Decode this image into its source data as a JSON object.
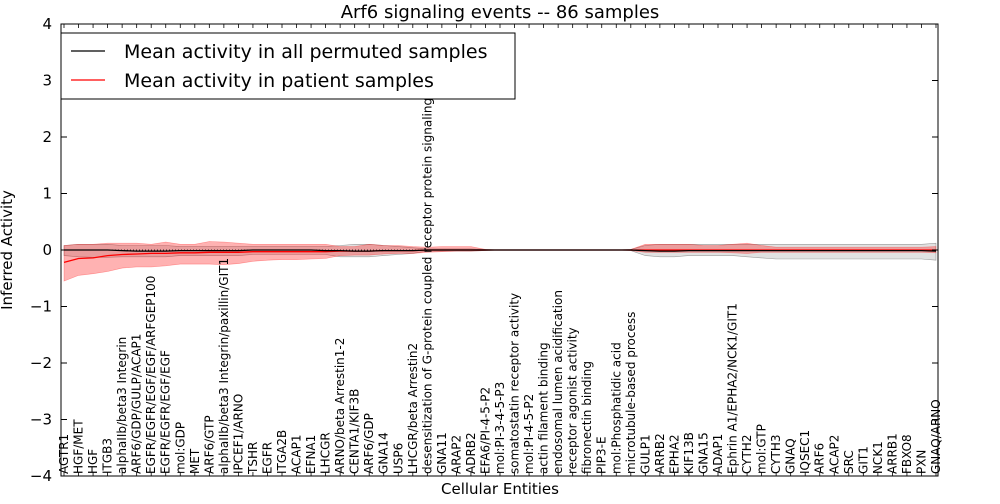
{
  "chart_data": {
    "type": "line",
    "title": "Arf6 signaling events -- 86 samples",
    "xlabel": "Cellular Entities",
    "ylabel": "Inferred Activity",
    "ylim": [
      -4,
      4
    ],
    "yticks": [
      -4,
      -3,
      -2,
      -1,
      0,
      1,
      2,
      3,
      4
    ],
    "legend_position": "top-left",
    "categories": [
      "AGTR1",
      "HGF/MET",
      "HGF",
      "ITGB3",
      "alphaIIb/beta3 Integrin",
      "ARF6/GDP/GULP/ACAP1",
      "EGFR/EGFR/EGF/EGF/ARFGEP100",
      "EGFR/EGFR/EGF/EGF",
      "mol:GDP",
      "MET",
      "ARF6/GTP",
      "alphaIIb/beta3 Integrin/paxillin/GIT1",
      "IPCEF1/ARNO",
      "TSHR",
      "EGFR",
      "ITGA2B",
      "ACAP1",
      "EFNA1",
      "LHCGR",
      "ARNO/beta Arrestin1-2",
      "CENTA1/KIF3B",
      "ARF6/GDP",
      "GNA14",
      "USP6",
      "LHCGR/beta Arrestin2",
      "desensitization of G-protein coupled receptor protein signaling pathway",
      "GNA11",
      "ARAP2",
      "ADRB2",
      "EFA6/PI-4-5-P2",
      "mol:PI-3-4-5-P3",
      "somatostatin receptor activity",
      "mol:PI-4-5-P2",
      "actin filament binding",
      "endosomal lumen acidification",
      "receptor agonist activity",
      "fibronectin binding",
      "PIP3-E",
      "mol:Phosphatidic acid",
      "microtubule-based process",
      "GULP1",
      "ARRB2",
      "EPHA2",
      "KIF13B",
      "GNA15",
      "ADAP1",
      "Ephrin A1/EPHA2/NCK1/GIT1",
      "CYTH2",
      "mol:GTP",
      "CYTH3",
      "GNAQ",
      "IQSEC1",
      "ARF6",
      "ACAP2",
      "SRC",
      "GIT1",
      "NCK1",
      "ARRB1",
      "FBXO8",
      "PXN",
      "GNAQ/ARNO"
    ],
    "series": [
      {
        "name": "Mean activity in all permuted samples",
        "color": "#000000",
        "values": [
          0,
          0,
          0,
          0,
          -0.01,
          -0.02,
          -0.02,
          -0.02,
          -0.01,
          -0.01,
          -0.01,
          -0.01,
          -0.01,
          0,
          0,
          0,
          0,
          0,
          -0.01,
          -0.01,
          -0.02,
          -0.02,
          -0.01,
          -0.01,
          -0.01,
          0,
          0,
          0,
          0,
          0,
          0,
          0,
          0,
          0,
          0,
          0,
          0,
          0,
          0,
          0,
          -0.01,
          -0.02,
          -0.02,
          -0.01,
          -0.01,
          -0.01,
          -0.01,
          -0.01,
          -0.01,
          -0.01,
          -0.01,
          -0.01,
          -0.01,
          -0.01,
          -0.01,
          -0.01,
          -0.01,
          -0.01,
          -0.01,
          -0.01,
          -0.02
        ],
        "band_low": [
          -0.1,
          -0.12,
          -0.13,
          -0.13,
          -0.12,
          -0.12,
          -0.12,
          -0.12,
          -0.1,
          -0.1,
          -0.1,
          -0.1,
          -0.1,
          -0.08,
          -0.08,
          -0.08,
          -0.08,
          -0.08,
          -0.08,
          -0.12,
          -0.12,
          -0.12,
          -0.1,
          -0.08,
          -0.06,
          -0.02,
          -0.02,
          -0.02,
          -0.02,
          -0.01,
          0,
          0,
          0,
          0,
          0,
          0,
          0,
          0,
          0,
          -0.01,
          -0.1,
          -0.12,
          -0.12,
          -0.1,
          -0.1,
          -0.1,
          -0.1,
          -0.12,
          -0.14,
          -0.16,
          -0.16,
          -0.16,
          -0.16,
          -0.16,
          -0.16,
          -0.16,
          -0.16,
          -0.16,
          -0.16,
          -0.16,
          -0.18
        ],
        "band_high": [
          0.08,
          0.1,
          0.1,
          0.1,
          0.08,
          0.08,
          0.08,
          0.08,
          0.06,
          0.06,
          0.06,
          0.06,
          0.06,
          0.06,
          0.06,
          0.06,
          0.06,
          0.06,
          0.06,
          0.08,
          0.1,
          0.1,
          0.08,
          0.06,
          0.04,
          0.02,
          0.02,
          0.02,
          0.02,
          0.01,
          0,
          0,
          0,
          0,
          0,
          0,
          0,
          0,
          0,
          0.01,
          0.08,
          0.1,
          0.1,
          0.1,
          0.1,
          0.1,
          0.1,
          0.1,
          0.1,
          0.1,
          0.1,
          0.1,
          0.1,
          0.1,
          0.1,
          0.1,
          0.1,
          0.1,
          0.1,
          0.1,
          0.12
        ]
      },
      {
        "name": "Mean activity in patient samples",
        "color": "#ff0000",
        "values": [
          -0.22,
          -0.15,
          -0.14,
          -0.1,
          -0.08,
          -0.07,
          -0.06,
          -0.06,
          -0.05,
          -0.05,
          -0.04,
          -0.04,
          -0.04,
          -0.03,
          -0.03,
          -0.03,
          -0.03,
          -0.03,
          -0.03,
          -0.02,
          -0.02,
          -0.02,
          -0.01,
          -0.01,
          -0.01,
          0,
          0,
          0,
          0,
          0,
          0,
          0,
          0,
          0,
          0,
          0,
          0,
          0,
          0,
          0,
          0,
          0,
          0,
          0,
          0,
          0,
          0,
          0,
          0,
          0,
          0,
          0,
          0,
          0,
          0,
          0,
          0,
          0,
          0,
          0,
          0
        ],
        "band_low": [
          -0.55,
          -0.45,
          -0.42,
          -0.38,
          -0.32,
          -0.3,
          -0.3,
          -0.28,
          -0.25,
          -0.25,
          -0.25,
          -0.26,
          -0.24,
          -0.2,
          -0.18,
          -0.17,
          -0.17,
          -0.16,
          -0.15,
          -0.1,
          -0.09,
          -0.09,
          -0.07,
          -0.06,
          -0.06,
          -0.04,
          -0.03,
          -0.02,
          -0.02,
          -0.01,
          0,
          0,
          0,
          0,
          0,
          0,
          0,
          0,
          0,
          -0.01,
          -0.04,
          -0.04,
          -0.04,
          -0.04,
          -0.04,
          -0.04,
          -0.05,
          -0.06,
          -0.04,
          -0.04,
          -0.04,
          -0.04,
          -0.04,
          -0.04,
          -0.04,
          -0.04,
          -0.04,
          -0.04,
          -0.04,
          -0.04,
          -0.05
        ],
        "band_high": [
          0.08,
          0.1,
          0.1,
          0.12,
          0.12,
          0.12,
          0.1,
          0.14,
          0.1,
          0.1,
          0.15,
          0.14,
          0.12,
          0.1,
          0.1,
          0.1,
          0.1,
          0.1,
          0.1,
          0.06,
          0.06,
          0.1,
          0.08,
          0.08,
          0.06,
          0.05,
          0.06,
          0.06,
          0.06,
          0.01,
          0,
          0,
          0,
          0,
          0,
          0,
          0,
          0,
          0,
          0.01,
          0.1,
          0.1,
          0.1,
          0.1,
          0.08,
          0.08,
          0.1,
          0.12,
          0.08,
          0.05,
          0.05,
          0.05,
          0.05,
          0.05,
          0.05,
          0.05,
          0.05,
          0.05,
          0.05,
          0.05,
          0.06
        ]
      }
    ]
  }
}
